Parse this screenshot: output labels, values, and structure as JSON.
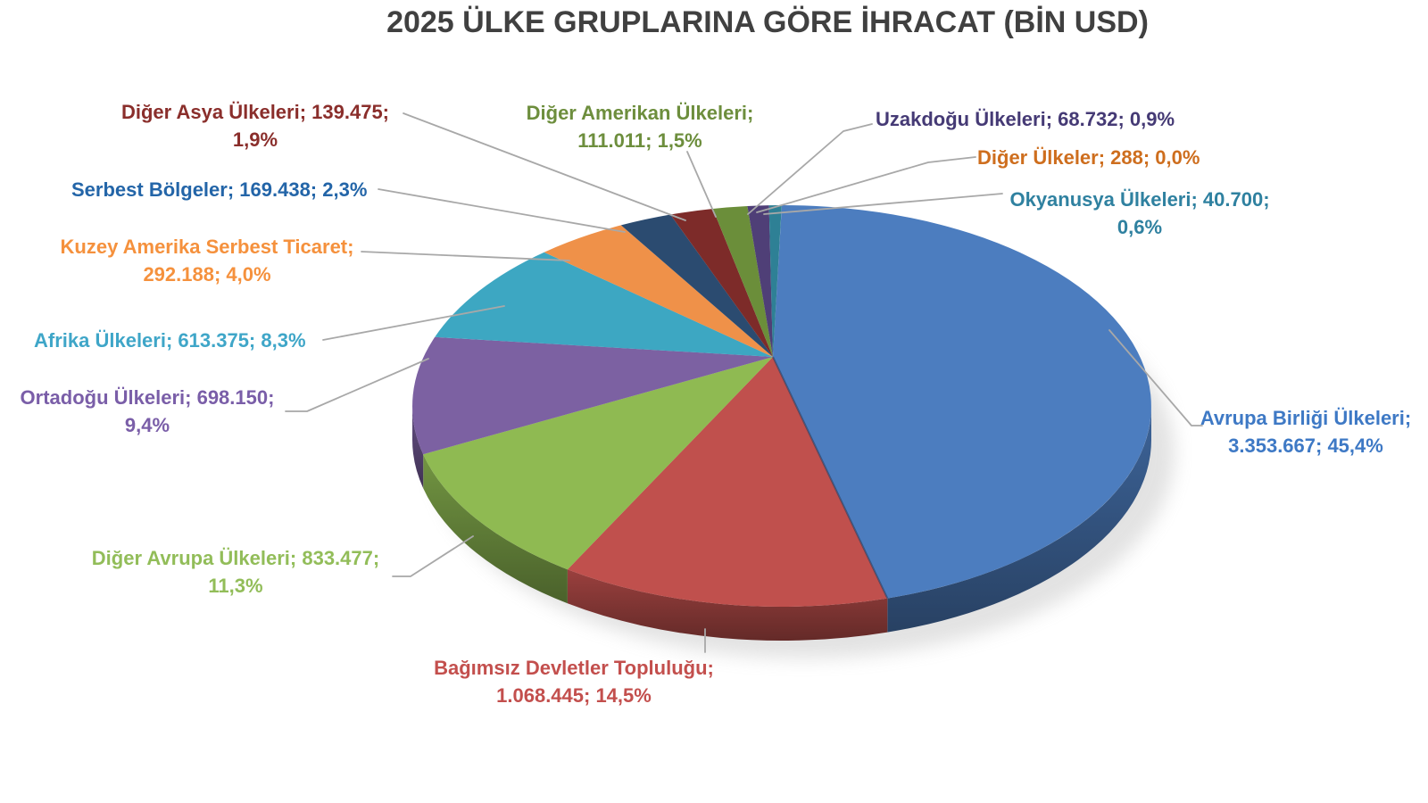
{
  "page": {
    "background": "#FFFFFF"
  },
  "chart_data": {
    "type": "pie",
    "is_3d": true,
    "title": "2025 ÜLKE GRUPLARINA GÖRE İHRACAT (BİN USD)",
    "title_color": "#404040",
    "unit": "BİN USD",
    "legend": "none",
    "leader_line_color": "#A8A8A8",
    "start_angle_deg": 0,
    "direction": "clockwise",
    "total_value": 7388946,
    "series": [
      {
        "key": "avrupa-birligi-ulkeleri",
        "name": "Avrupa Birliği Ülkeleri",
        "value": 3353667,
        "value_display": "3.353.667",
        "pct_display": "45,4%",
        "label": "Avrupa Birliği Ülkeleri; 3.353.667; 45,4%",
        "color": "#4C7DBF",
        "label_color": "#3E79C5"
      },
      {
        "key": "bagimsiz-devletler-toplulugu",
        "name": "Bağımsız Devletler Topluluğu",
        "value": 1068445,
        "value_display": "1.068.445",
        "pct_display": "14,5%",
        "label": "Bağımsız Devletler Topluluğu; 1.068.445; 14,5%",
        "color": "#C0504D",
        "label_color": "#C34F4D"
      },
      {
        "key": "diger-avrupa-ulkeleri",
        "name": "Diğer Avrupa Ülkeleri",
        "value": 833477,
        "value_display": "833.477",
        "pct_display": "11,3%",
        "label": "Diğer Avrupa Ülkeleri; 833.477; 11,3%",
        "color": "#8FBA52",
        "label_color": "#92BD59"
      },
      {
        "key": "ortadogu-ulkeleri",
        "name": "Ortadoğu Ülkeleri",
        "value": 698150,
        "value_display": "698.150",
        "pct_display": "9,4%",
        "label": "Ortadoğu Ülkeleri; 698.150; 9,4%",
        "color": "#7C61A2",
        "label_color": "#7A5EA8"
      },
      {
        "key": "afrika-ulkeleri",
        "name": "Afrika Ülkeleri",
        "value": 613375,
        "value_display": "613.375",
        "pct_display": "8,3%",
        "label": "Afrika Ülkeleri; 613.375; 8,3%",
        "color": "#3DA7C2",
        "label_color": "#3FA6C8"
      },
      {
        "key": "kuzey-amerika-serbest-ticaret",
        "name": "Kuzey Amerika Serbest Ticaret",
        "value": 292188,
        "value_display": "292.188",
        "pct_display": "4,0%",
        "label": "Kuzey Amerika Serbest Ticaret; 292.188; 4,0%",
        "color": "#EF9149",
        "label_color": "#F5913D"
      },
      {
        "key": "serbest-bolgeler",
        "name": "Serbest Bölgeler",
        "value": 169438,
        "value_display": "169.438",
        "pct_display": "2,3%",
        "label": "Serbest Bölgeler; 169.438; 2,3%",
        "color": "#2B4B70",
        "label_color": "#2365A8"
      },
      {
        "key": "diger-asya-ulkeleri",
        "name": "Diğer Asya Ülkeleri",
        "value": 139475,
        "value_display": "139.475",
        "pct_display": "1,9%",
        "label": "Diğer Asya Ülkeleri; 139.475; 1,9%",
        "color": "#7D2B29",
        "label_color": "#8A2E2B"
      },
      {
        "key": "diger-amerikan-ulkeleri",
        "name": "Diğer Amerikan Ülkeleri",
        "value": 111011,
        "value_display": "111.011",
        "pct_display": "1,5%",
        "label": "Diğer Amerikan Ülkeleri; 111.011; 1,5%",
        "color": "#6B8E3A",
        "label_color": "#6D8E3D"
      },
      {
        "key": "uzakdogu-ulkeleri",
        "name": "Uzakdoğu Ülkeleri",
        "value": 68732,
        "value_display": "68.732",
        "pct_display": "0,9%",
        "label": "Uzakdoğu Ülkeleri; 68.732; 0,9%",
        "color": "#4F3F77",
        "label_color": "#453A75"
      },
      {
        "key": "okyanusya-ulkeleri",
        "name": "Okyanusya Ülkeleri",
        "value": 40700,
        "value_display": "40.700",
        "pct_display": "0,6%",
        "label": "Okyanusya Ülkeleri; 40.700; 0,6%",
        "color": "#2E8095",
        "label_color": "#2F81A0"
      },
      {
        "key": "diger-ulkeler",
        "name": "Diğer Ülkeler",
        "value": 288,
        "value_display": "288",
        "pct_display": "0,0%",
        "label": "Diğer Ülkeler; 288; 0,0%",
        "color": "#CE6E1E",
        "label_color": "#CE6E1E"
      }
    ]
  }
}
